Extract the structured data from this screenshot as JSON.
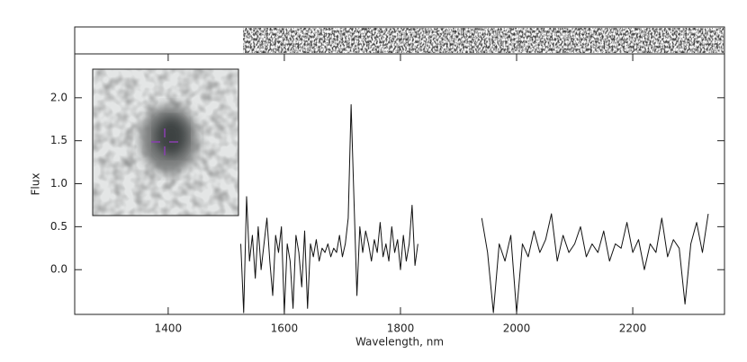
{
  "chart_data": {
    "type": "line",
    "xlabel": "Wavelength, nm",
    "ylabel": "Flux",
    "x": [
      1525,
      1530,
      1535,
      1540,
      1545,
      1550,
      1555,
      1560,
      1565,
      1570,
      1575,
      1580,
      1585,
      1590,
      1595,
      1600,
      1605,
      1610,
      1615,
      1620,
      1625,
      1630,
      1635,
      1640,
      1645,
      1650,
      1655,
      1660,
      1665,
      1670,
      1675,
      1680,
      1685,
      1690,
      1695,
      1700,
      1705,
      1710,
      1715,
      1720,
      1725,
      1730,
      1735,
      1740,
      1745,
      1750,
      1755,
      1760,
      1765,
      1770,
      1775,
      1780,
      1785,
      1790,
      1795,
      1800,
      1805,
      1810,
      1815,
      1820,
      1825,
      1830,
      1885,
      1940,
      1950,
      1960,
      1970,
      1980,
      1990,
      2000,
      2010,
      2020,
      2030,
      2040,
      2050,
      2060,
      2070,
      2080,
      2090,
      2100,
      2110,
      2120,
      2130,
      2140,
      2150,
      2160,
      2170,
      2180,
      2190,
      2200,
      2210,
      2220,
      2230,
      2240,
      2250,
      2260,
      2270,
      2280,
      2290,
      2300,
      2310,
      2320,
      2330
    ],
    "series": [
      {
        "color": "#111111",
        "values": [
          0.3,
          -0.5,
          0.85,
          0.1,
          0.4,
          -0.1,
          0.5,
          0.0,
          0.3,
          0.6,
          0.1,
          -0.3,
          0.4,
          0.2,
          0.5,
          -0.5,
          0.3,
          0.1,
          -0.45,
          0.4,
          0.2,
          -0.2,
          0.45,
          -0.45,
          0.3,
          0.15,
          0.35,
          0.1,
          0.25,
          0.2,
          0.3,
          0.15,
          0.25,
          0.2,
          0.4,
          0.15,
          0.3,
          0.6,
          1.92,
          0.8,
          -0.3,
          0.5,
          0.2,
          0.45,
          0.3,
          0.1,
          0.35,
          0.2,
          0.55,
          0.15,
          0.3,
          0.1,
          0.5,
          0.2,
          0.35,
          0.0,
          0.4,
          0.1,
          0.3,
          0.75,
          0.05,
          0.3,
          null,
          0.6,
          0.2,
          -0.5,
          0.3,
          0.1,
          0.4,
          -0.5,
          0.3,
          0.15,
          0.45,
          0.2,
          0.35,
          0.65,
          0.1,
          0.4,
          0.2,
          0.3,
          0.5,
          0.15,
          0.3,
          0.2,
          0.45,
          0.1,
          0.3,
          0.25,
          0.55,
          0.2,
          0.35,
          0.0,
          0.3,
          0.2,
          0.6,
          0.15,
          0.35,
          0.25,
          -0.4,
          0.3,
          0.55,
          0.2,
          0.65
        ]
      }
    ],
    "xlim": [
      1239,
      2358
    ],
    "ylim": [
      -0.52,
      2.51
    ],
    "xticks": [
      1400,
      1600,
      1800,
      2000,
      2200
    ],
    "yticks": [
      {
        "value": 0,
        "label": "0.0"
      },
      {
        "value": 0.5,
        "label": "0.5"
      },
      {
        "value": 1,
        "label": "1.0"
      },
      {
        "value": 1.5,
        "label": "1.5"
      },
      {
        "value": 2,
        "label": "2.0"
      }
    ]
  }
}
